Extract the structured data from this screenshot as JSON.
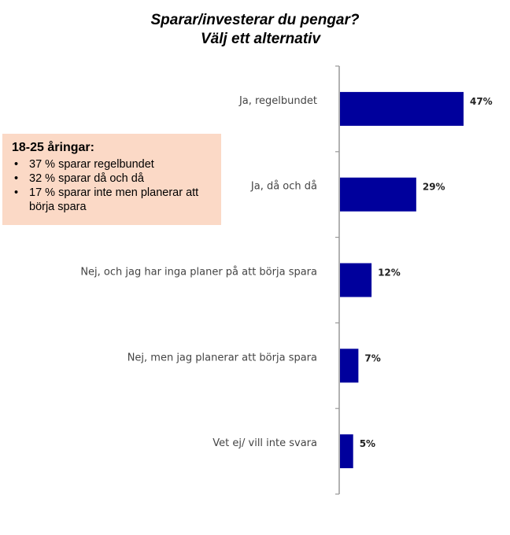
{
  "title": {
    "line1": "Sparar/investerar du pengar?",
    "line2": "Välj ett alternativ"
  },
  "callout": {
    "heading": "18-25 åringar:",
    "items": [
      "37 % sparar regelbundet",
      "32 % sparar då och då",
      "17 % sparar inte men planerar att börja spara"
    ],
    "bullet": "•"
  },
  "chart_data": {
    "type": "bar",
    "orientation": "horizontal",
    "categories": [
      "Ja, regelbundet",
      "Ja, då och då",
      "Nej, och jag har inga planer på att börja spara",
      "Nej, men jag planerar att börja spara",
      "Vet ej/ vill inte svara"
    ],
    "values": [
      47,
      29,
      12,
      7,
      5
    ],
    "value_labels": [
      "47%",
      "29%",
      "12%",
      "7%",
      "5%"
    ],
    "unit": "%",
    "xlim": [
      0,
      100
    ],
    "bar_color": "#00009c",
    "axis_color": "#999999",
    "grid": false,
    "legend": "none"
  }
}
